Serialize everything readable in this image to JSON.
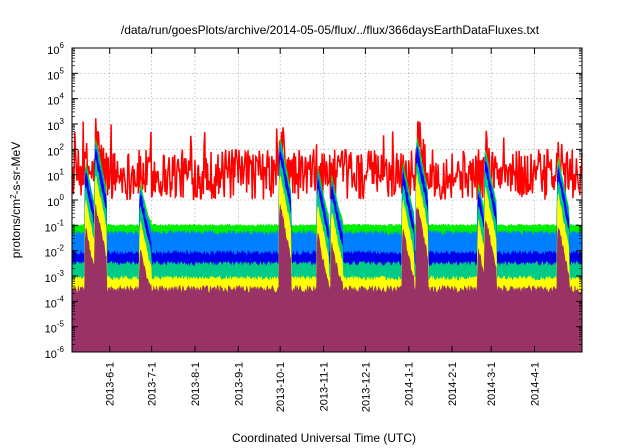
{
  "chart_data": {
    "type": "area",
    "title": "/data/run/goesPlots/archive/2014-05-05/flux/../flux/366daysEarthDataFluxes.txt",
    "xlabel": "Coordinated Universal Time (UTC)",
    "ylabel_base": "protons/cm",
    "ylabel_sup": "2",
    "ylabel_rest": "-s-sr-MeV",
    "yscale": "log",
    "ylim": [
      1e-06,
      1000000.0
    ],
    "xlim": [
      "2013-05-05",
      "2014-05-05"
    ],
    "grid": true,
    "legend": "none",
    "y_tick_exponents": [
      -6,
      -5,
      -4,
      -3,
      -2,
      -1,
      0,
      1,
      2,
      3,
      4,
      5,
      6
    ],
    "y_tick_base": "10",
    "x_ticks": [
      {
        "date": "2013-06-01",
        "label": "2013-6-1"
      },
      {
        "date": "2013-07-01",
        "label": "2013-7-1"
      },
      {
        "date": "2013-08-01",
        "label": "2013-8-1"
      },
      {
        "date": "2013-09-01",
        "label": "2013-9-1"
      },
      {
        "date": "2013-10-01",
        "label": "2013-10-1"
      },
      {
        "date": "2013-11-01",
        "label": "2013-11-1"
      },
      {
        "date": "2013-12-01",
        "label": "2013-12-1"
      },
      {
        "date": "2014-01-01",
        "label": "2014-1-1"
      },
      {
        "date": "2014-02-01",
        "label": "2014-2-1"
      },
      {
        "date": "2014-03-01",
        "label": "2014-3-1"
      },
      {
        "date": "2014-04-01",
        "label": "2014-4-1"
      }
    ],
    "events": [
      {
        "date": "2013-05-15",
        "peak": 30
      },
      {
        "date": "2013-05-22",
        "peak": 300
      },
      {
        "date": "2013-06-23",
        "peak": 5
      },
      {
        "date": "2013-10-01",
        "peak": 300
      },
      {
        "date": "2013-10-28",
        "peak": 20
      },
      {
        "date": "2013-11-07",
        "peak": 10
      },
      {
        "date": "2013-12-28",
        "peak": 30
      },
      {
        "date": "2014-01-07",
        "peak": 300
      },
      {
        "date": "2014-02-20",
        "peak": 5
      },
      {
        "date": "2014-02-25",
        "peak": 100
      },
      {
        "date": "2014-04-18",
        "peak": 50
      }
    ],
    "series": [
      {
        "color": "#ff0000",
        "baseline": 10,
        "noise_decades": 1.0
      },
      {
        "color": "#00ee00",
        "baseline": 0.1,
        "noise_decades": 0.05
      },
      {
        "color": "#0080ff",
        "baseline": 0.05,
        "noise_decades": 0.1
      },
      {
        "color": "#0000ee",
        "baseline": 0.008,
        "noise_decades": 0.1
      },
      {
        "color": "#00cc88",
        "baseline": 0.003,
        "noise_decades": 0.1
      },
      {
        "color": "#ffff00",
        "baseline": 0.0008,
        "noise_decades": 0.1
      },
      {
        "color": "#993366",
        "baseline": 0.0003,
        "noise_decades": 0.15
      }
    ]
  }
}
